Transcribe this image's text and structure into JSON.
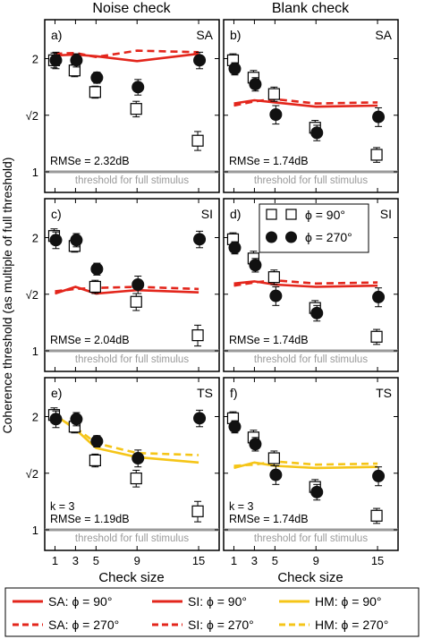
{
  "figure": {
    "column_titles": [
      "Noise check",
      "Blank check"
    ],
    "y_axis_label": "Coherence threshold (as multiple of full threshold)",
    "x_axis_label": "Check size",
    "reference_line_label": "threshold for full stimulus",
    "marker_legend": [
      {
        "label": "ϕ = 90°",
        "marker": "open-square"
      },
      {
        "label": "ϕ = 270°",
        "marker": "filled-circle"
      }
    ],
    "line_legend": [
      {
        "label": "SA: ϕ = 90°",
        "color": "#e3261c",
        "style": "solid"
      },
      {
        "label": "SI: ϕ = 90°",
        "color": "#e3261c",
        "style": "solid"
      },
      {
        "label": "HM: ϕ = 90°",
        "color": "#f5c518",
        "style": "solid"
      },
      {
        "label": "SA: ϕ = 270°",
        "color": "#e3261c",
        "style": "dashed"
      },
      {
        "label": "SI: ϕ = 270°",
        "color": "#e3261c",
        "style": "dashed"
      },
      {
        "label": "HM: ϕ = 270°",
        "color": "#f5c518",
        "style": "dashed"
      }
    ],
    "colors": {
      "model_red": "#e3261c",
      "model_yellow": "#f5c518",
      "reference_gray": "#9a9a9a"
    }
  },
  "chart_data": [
    {
      "type": "scatter",
      "panel": "a)",
      "model": "SA",
      "column": "Noise check",
      "annotation": [
        "RMSe = 2.32dB"
      ],
      "xticks": [
        1,
        3,
        5,
        9,
        15
      ],
      "yticks": [
        "1",
        "√2",
        "2"
      ],
      "ylim": [
        1,
        2.3
      ],
      "y_scale": "log2",
      "xlim": [
        0,
        17
      ],
      "x": [
        1,
        3,
        5,
        9,
        15
      ],
      "series": [
        {
          "marker": "open-square",
          "values": [
            1.98,
            1.86,
            1.63,
            1.47,
            1.21
          ],
          "err": [
            0.09,
            0.07,
            0.06,
            0.07,
            0.07
          ]
        },
        {
          "marker": "filled-circle",
          "values": [
            1.98,
            1.98,
            1.78,
            1.68,
            1.98
          ],
          "err": [
            0.1,
            0.08,
            0.06,
            0.08,
            0.1
          ]
        },
        {
          "line": "solid",
          "color": "#e3261c",
          "values": [
            2.04,
            2.05,
            2.03,
            1.97,
            2.06
          ]
        },
        {
          "line": "dashed",
          "color": "#e3261c",
          "values": [
            2.06,
            2.07,
            2.02,
            2.1,
            2.08
          ]
        }
      ]
    },
    {
      "type": "scatter",
      "panel": "b)",
      "model": "SA",
      "column": "Blank check",
      "annotation": [
        "RMSe = 1.74dB"
      ],
      "xticks": [
        1,
        3,
        5,
        9,
        15
      ],
      "yticks": [
        "1",
        "√2",
        "2"
      ],
      "ylim": [
        1,
        2.3
      ],
      "y_scale": "log2",
      "xlim": [
        0,
        17
      ],
      "x": [
        1,
        3,
        5,
        9,
        15
      ],
      "series": [
        {
          "marker": "open-square",
          "values": [
            1.98,
            1.78,
            1.61,
            1.31,
            1.11
          ],
          "err": [
            0.08,
            0.08,
            0.07,
            0.06,
            0.05
          ]
        },
        {
          "marker": "filled-circle",
          "values": [
            1.88,
            1.71,
            1.42,
            1.27,
            1.4
          ],
          "err": [
            0.07,
            0.07,
            0.08,
            0.06,
            0.08
          ]
        },
        {
          "line": "solid",
          "color": "#e3261c",
          "values": [
            1.52,
            1.55,
            1.53,
            1.49,
            1.5
          ]
        },
        {
          "line": "dashed",
          "color": "#e3261c",
          "values": [
            1.5,
            1.54,
            1.56,
            1.52,
            1.53
          ]
        }
      ]
    },
    {
      "type": "scatter",
      "panel": "c)",
      "model": "SI",
      "column": "Noise check",
      "annotation": [
        "RMSe = 2.04dB"
      ],
      "xticks": [
        1,
        3,
        5,
        9,
        15
      ],
      "yticks": [
        "1",
        "√2",
        "2"
      ],
      "ylim": [
        1,
        2.3
      ],
      "y_scale": "log2",
      "xlim": [
        0,
        17
      ],
      "x": [
        1,
        3,
        5,
        9,
        15
      ],
      "series": [
        {
          "marker": "open-square",
          "values": [
            2.02,
            1.9,
            1.48,
            1.35,
            1.1
          ],
          "err": [
            0.09,
            0.07,
            0.06,
            0.07,
            0.07
          ]
        },
        {
          "marker": "filled-circle",
          "values": [
            1.97,
            1.97,
            1.65,
            1.5,
            1.98
          ],
          "err": [
            0.1,
            0.08,
            0.06,
            0.08,
            0.1
          ]
        },
        {
          "line": "solid",
          "color": "#e3261c",
          "values": [
            1.42,
            1.48,
            1.42,
            1.45,
            1.43
          ]
        },
        {
          "line": "dashed",
          "color": "#e3261c",
          "values": [
            1.44,
            1.46,
            1.47,
            1.48,
            1.46
          ]
        }
      ]
    },
    {
      "type": "scatter",
      "panel": "d)",
      "model": "SI",
      "column": "Blank check",
      "annotation": [
        "RMSe = 1.74dB"
      ],
      "xticks": [
        1,
        3,
        5,
        9,
        15
      ],
      "yticks": [
        "1",
        "√2",
        "2"
      ],
      "ylim": [
        1,
        2.3
      ],
      "y_scale": "log2",
      "xlim": [
        0,
        17
      ],
      "x": [
        1,
        3,
        5,
        9,
        15
      ],
      "series": [
        {
          "marker": "open-square",
          "values": [
            1.98,
            1.76,
            1.57,
            1.3,
            1.09
          ],
          "err": [
            0.08,
            0.08,
            0.07,
            0.06,
            0.05
          ]
        },
        {
          "marker": "filled-circle",
          "values": [
            1.88,
            1.69,
            1.4,
            1.26,
            1.39
          ],
          "err": [
            0.07,
            0.07,
            0.08,
            0.06,
            0.08
          ]
        },
        {
          "line": "solid",
          "color": "#e3261c",
          "values": [
            1.51,
            1.53,
            1.5,
            1.48,
            1.49
          ]
        },
        {
          "line": "dashed",
          "color": "#e3261c",
          "values": [
            1.49,
            1.52,
            1.54,
            1.51,
            1.52
          ]
        }
      ]
    },
    {
      "type": "scatter",
      "panel": "e)",
      "model": "TS",
      "column": "Noise check",
      "annotation": [
        "k = 3",
        "RMSe = 1.19dB"
      ],
      "xticks": [
        1,
        3,
        5,
        9,
        15
      ],
      "yticks": [
        "1",
        "√2",
        "2"
      ],
      "ylim": [
        1,
        2.3
      ],
      "y_scale": "log2",
      "xlim": [
        0,
        17
      ],
      "x": [
        1,
        3,
        5,
        9,
        15
      ],
      "series": [
        {
          "marker": "open-square",
          "values": [
            2.02,
            1.88,
            1.53,
            1.37,
            1.12
          ],
          "err": [
            0.09,
            0.07,
            0.06,
            0.07,
            0.07
          ]
        },
        {
          "marker": "filled-circle",
          "values": [
            1.97,
            1.97,
            1.72,
            1.55,
            1.98
          ],
          "err": [
            0.1,
            0.08,
            0.06,
            0.08,
            0.1
          ]
        },
        {
          "line": "solid",
          "color": "#f5c518",
          "values": [
            2.02,
            1.85,
            1.65,
            1.56,
            1.51
          ]
        },
        {
          "line": "dashed",
          "color": "#f5c518",
          "values": [
            2.0,
            1.87,
            1.7,
            1.6,
            1.58
          ]
        }
      ]
    },
    {
      "type": "scatter",
      "panel": "f)",
      "model": "TS",
      "column": "Blank check",
      "annotation": [
        "k = 3",
        "RMSe = 1.74dB"
      ],
      "xticks": [
        1,
        3,
        5,
        9,
        15
      ],
      "yticks": [
        "1",
        "√2",
        "2"
      ],
      "ylim": [
        1,
        2.3
      ],
      "y_scale": "log2",
      "xlim": [
        0,
        17
      ],
      "x": [
        1,
        3,
        5,
        9,
        15
      ],
      "series": [
        {
          "marker": "open-square",
          "values": [
            1.98,
            1.76,
            1.55,
            1.3,
            1.09
          ],
          "err": [
            0.08,
            0.08,
            0.07,
            0.06,
            0.05
          ]
        },
        {
          "marker": "filled-circle",
          "values": [
            1.88,
            1.69,
            1.4,
            1.26,
            1.39
          ],
          "err": [
            0.07,
            0.07,
            0.08,
            0.06,
            0.08
          ]
        },
        {
          "line": "solid",
          "color": "#f5c518",
          "values": [
            1.46,
            1.51,
            1.48,
            1.46,
            1.47
          ]
        },
        {
          "line": "dashed",
          "color": "#f5c518",
          "values": [
            1.48,
            1.49,
            1.52,
            1.49,
            1.5
          ]
        }
      ]
    }
  ]
}
